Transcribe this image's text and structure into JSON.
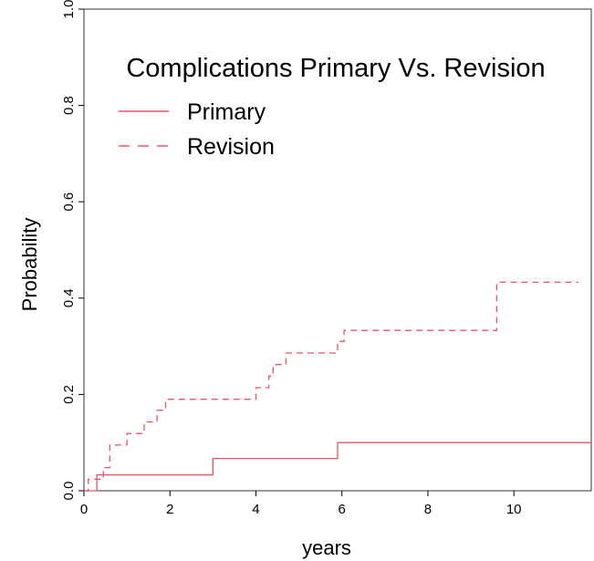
{
  "chart_data": {
    "type": "line",
    "title": "Complications Primary Vs. Revision",
    "xlabel": "years",
    "ylabel": "Probability",
    "xlim": [
      0,
      11.8
    ],
    "ylim": [
      0,
      1.0
    ],
    "x_ticks": [
      0,
      2,
      4,
      6,
      8,
      10
    ],
    "y_ticks": [
      0.0,
      0.2,
      0.4,
      0.6,
      0.8,
      1.0
    ],
    "y_tick_labels": [
      "0.0",
      "0.2",
      "0.4",
      "0.6",
      "0.8",
      "1.0"
    ],
    "grid": false,
    "legend_position": "top-left",
    "step": true,
    "series": [
      {
        "name": "Primary",
        "line_style": "solid",
        "color": "#e8546c",
        "x": [
          0,
          0.3,
          3.0,
          5.9,
          11.8
        ],
        "y": [
          0,
          0.033,
          0.067,
          0.1,
          0.1
        ]
      },
      {
        "name": "Revision",
        "line_style": "dashed",
        "color": "#e8546c",
        "x": [
          0,
          0.1,
          0.45,
          0.6,
          1.0,
          1.4,
          1.7,
          1.9,
          4.0,
          4.3,
          4.4,
          4.7,
          5.9,
          6.05,
          9.6,
          11.5
        ],
        "y": [
          0,
          0.024,
          0.048,
          0.095,
          0.119,
          0.143,
          0.167,
          0.19,
          0.214,
          0.238,
          0.262,
          0.286,
          0.31,
          0.333,
          0.433,
          0.433
        ]
      }
    ]
  }
}
